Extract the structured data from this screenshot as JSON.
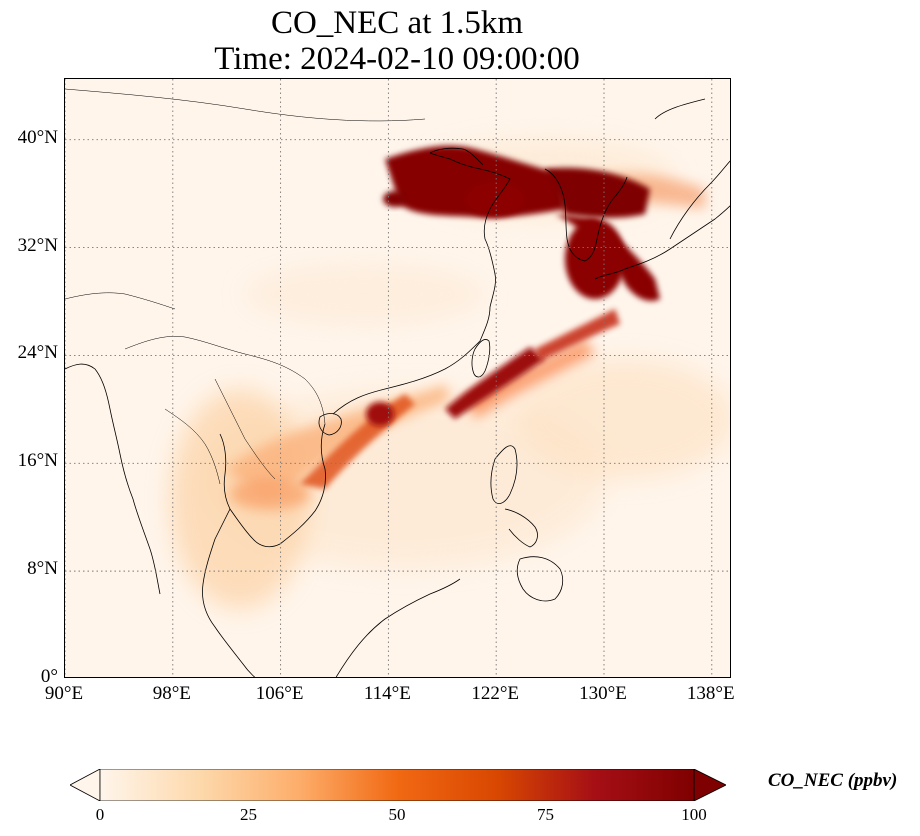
{
  "title_line1": "CO_NEC at 1.5km",
  "title_line2": "Time: 2024-02-10 09:00:00",
  "map": {
    "lon_range": [
      90,
      139.5
    ],
    "lat_range": [
      0,
      44.5
    ],
    "lat_ticks": [
      {
        "value": 40,
        "label": "40°N"
      },
      {
        "value": 32,
        "label": "32°N"
      },
      {
        "value": 24,
        "label": "24°N"
      },
      {
        "value": 16,
        "label": "16°N"
      },
      {
        "value": 8,
        "label": "8°N"
      },
      {
        "value": 0,
        "label": "0°"
      }
    ],
    "lon_ticks": [
      {
        "value": 90,
        "label": "90°E"
      },
      {
        "value": 98,
        "label": "98°E"
      },
      {
        "value": 106,
        "label": "106°E"
      },
      {
        "value": 114,
        "label": "114°E"
      },
      {
        "value": 122,
        "label": "122°E"
      },
      {
        "value": 130,
        "label": "130°E"
      },
      {
        "value": 138,
        "label": "138°E"
      }
    ],
    "gridlines": true,
    "background_color": "#fff5eb"
  },
  "colorbar": {
    "label": "CO_NEC (ppbv)",
    "range": [
      0,
      100
    ],
    "extend": "both",
    "ticks": [
      {
        "value": 0,
        "label": "0"
      },
      {
        "value": 25,
        "label": "25"
      },
      {
        "value": 50,
        "label": "50"
      },
      {
        "value": 75,
        "label": "75"
      },
      {
        "value": 100,
        "label": "100"
      }
    ],
    "colormap": "OrRd",
    "colors": [
      "#fff5eb",
      "#fdd9ac",
      "#fdae6b",
      "#f16913",
      "#d94801",
      "#a50f15",
      "#7f0000"
    ]
  }
}
